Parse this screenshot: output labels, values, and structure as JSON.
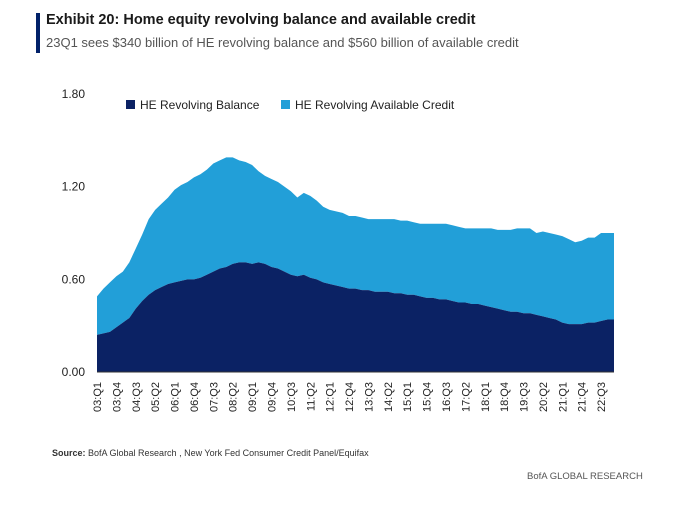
{
  "header": {
    "title": "Exhibit 20: Home equity revolving balance and available credit",
    "subtitle": "23Q1 sees $340 billion of HE revolving balance and $560 billion of available credit"
  },
  "footer": {
    "source_label": "Source:",
    "source_text": " BofA Global Research , New York Fed Consumer Credit Panel/Equifax",
    "brand": "BofA GLOBAL RESEARCH"
  },
  "colors": {
    "balance": "#0b2264",
    "available": "#229fd8",
    "accent": "#012169"
  },
  "chart_data": {
    "type": "area",
    "stacked": true,
    "ylim": [
      0,
      1.8
    ],
    "yticks": [
      "0.00",
      "0.60",
      "1.20",
      "1.80"
    ],
    "grid": false,
    "legend_position": "top-left",
    "x": [
      "03:Q1",
      "03:Q2",
      "03:Q3",
      "03:Q4",
      "04:Q1",
      "04:Q2",
      "04:Q3",
      "04:Q4",
      "05:Q1",
      "05:Q2",
      "05:Q3",
      "05:Q4",
      "06:Q1",
      "06:Q2",
      "06:Q3",
      "06:Q4",
      "07:Q1",
      "07:Q2",
      "07:Q3",
      "07:Q4",
      "08:Q1",
      "08:Q2",
      "08:Q3",
      "08:Q4",
      "09:Q1",
      "09:Q2",
      "09:Q3",
      "09:Q4",
      "10:Q1",
      "10:Q2",
      "10:Q3",
      "10:Q4",
      "11:Q1",
      "11:Q2",
      "11:Q3",
      "11:Q4",
      "12:Q1",
      "12:Q2",
      "12:Q3",
      "12:Q4",
      "13:Q1",
      "13:Q2",
      "13:Q3",
      "13:Q4",
      "14:Q1",
      "14:Q2",
      "14:Q3",
      "14:Q4",
      "15:Q1",
      "15:Q2",
      "15:Q3",
      "15:Q4",
      "16:Q1",
      "16:Q2",
      "16:Q3",
      "16:Q4",
      "17:Q1",
      "17:Q2",
      "17:Q3",
      "17:Q4",
      "18:Q1",
      "18:Q2",
      "18:Q3",
      "18:Q4",
      "19:Q1",
      "19:Q2",
      "19:Q3",
      "19:Q4",
      "20:Q1",
      "20:Q2",
      "20:Q3",
      "20:Q4",
      "21:Q1",
      "21:Q2",
      "21:Q3",
      "21:Q4",
      "22:Q1",
      "22:Q2",
      "22:Q3",
      "22:Q4",
      "23:Q1"
    ],
    "xtick_labels": [
      "03:Q1",
      "03:Q4",
      "04:Q3",
      "05:Q2",
      "06:Q1",
      "06:Q4",
      "07:Q3",
      "08:Q2",
      "09:Q1",
      "09:Q4",
      "10:Q3",
      "11:Q2",
      "12:Q1",
      "12:Q4",
      "13:Q3",
      "14:Q2",
      "15:Q1",
      "15:Q4",
      "16:Q3",
      "17:Q2",
      "18:Q1",
      "18:Q4",
      "19:Q3",
      "20:Q2",
      "21:Q1",
      "21:Q4",
      "22:Q3"
    ],
    "series": [
      {
        "name": "HE Revolving Balance",
        "values": [
          0.24,
          0.25,
          0.26,
          0.29,
          0.32,
          0.35,
          0.41,
          0.46,
          0.5,
          0.53,
          0.55,
          0.57,
          0.58,
          0.59,
          0.6,
          0.6,
          0.61,
          0.63,
          0.65,
          0.67,
          0.68,
          0.7,
          0.71,
          0.71,
          0.7,
          0.71,
          0.7,
          0.68,
          0.67,
          0.65,
          0.63,
          0.62,
          0.63,
          0.61,
          0.6,
          0.58,
          0.57,
          0.56,
          0.55,
          0.54,
          0.54,
          0.53,
          0.53,
          0.52,
          0.52,
          0.52,
          0.51,
          0.51,
          0.5,
          0.5,
          0.49,
          0.48,
          0.48,
          0.47,
          0.47,
          0.46,
          0.45,
          0.45,
          0.44,
          0.44,
          0.43,
          0.42,
          0.41,
          0.4,
          0.39,
          0.39,
          0.38,
          0.38,
          0.37,
          0.36,
          0.35,
          0.34,
          0.32,
          0.31,
          0.31,
          0.31,
          0.32,
          0.32,
          0.33,
          0.34,
          0.34
        ]
      },
      {
        "name": "HE Revolving Available Credit",
        "values": [
          0.25,
          0.29,
          0.32,
          0.33,
          0.33,
          0.36,
          0.39,
          0.43,
          0.49,
          0.52,
          0.54,
          0.56,
          0.6,
          0.62,
          0.63,
          0.66,
          0.67,
          0.68,
          0.7,
          0.7,
          0.71,
          0.69,
          0.66,
          0.65,
          0.64,
          0.59,
          0.57,
          0.57,
          0.56,
          0.55,
          0.54,
          0.51,
          0.53,
          0.53,
          0.51,
          0.49,
          0.48,
          0.48,
          0.48,
          0.47,
          0.47,
          0.47,
          0.46,
          0.47,
          0.47,
          0.47,
          0.48,
          0.47,
          0.48,
          0.47,
          0.47,
          0.48,
          0.48,
          0.49,
          0.49,
          0.49,
          0.49,
          0.48,
          0.49,
          0.49,
          0.5,
          0.51,
          0.51,
          0.52,
          0.53,
          0.54,
          0.55,
          0.55,
          0.53,
          0.55,
          0.55,
          0.55,
          0.56,
          0.55,
          0.53,
          0.54,
          0.55,
          0.55,
          0.57,
          0.56,
          0.56
        ]
      }
    ]
  }
}
